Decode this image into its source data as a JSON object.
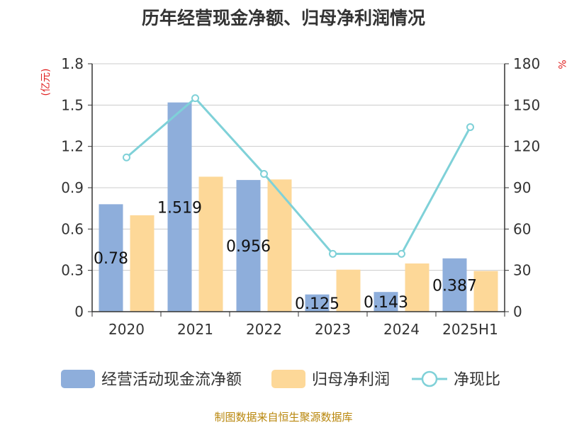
{
  "page": {
    "title": "历年经营现金净额、归母净利润情况",
    "footer": "制图数据来自恒生聚源数据库"
  },
  "colors": {
    "bar1": "#8eaedb",
    "bar2": "#fdd898",
    "line": "#7fd1d8",
    "axis": "#333333",
    "grid": "#cccccc",
    "unit": "#e02020"
  },
  "chart_data": {
    "type": "bar",
    "categories": [
      "2020",
      "2021",
      "2022",
      "2023",
      "2024",
      "2025H1"
    ],
    "series": [
      {
        "name": "经营活动现金流净额",
        "type": "bar",
        "axis": "left",
        "values": [
          0.78,
          1.519,
          0.956,
          0.125,
          0.143,
          0.387
        ],
        "labels": [
          "0.78",
          "1.519",
          "0.956",
          "0.125",
          "0.143",
          "0.387"
        ]
      },
      {
        "name": "归母净利润",
        "type": "bar",
        "axis": "left",
        "values": [
          0.7,
          0.98,
          0.96,
          0.305,
          0.35,
          0.295
        ]
      },
      {
        "name": "净现比",
        "type": "line",
        "axis": "right",
        "values": [
          112,
          155,
          100,
          42,
          42,
          134
        ]
      }
    ],
    "y_left": {
      "unit": "(亿元)",
      "ylim": [
        0,
        1.8
      ],
      "ticks": [
        "0",
        "0.3",
        "0.6",
        "0.9",
        "1.2",
        "1.5",
        "1.8"
      ]
    },
    "y_right": {
      "unit": "%",
      "ylim": [
        0,
        180
      ],
      "ticks": [
        "0",
        "30",
        "60",
        "90",
        "120",
        "150",
        "180"
      ]
    },
    "grid": true,
    "legend_position": "bottom"
  }
}
